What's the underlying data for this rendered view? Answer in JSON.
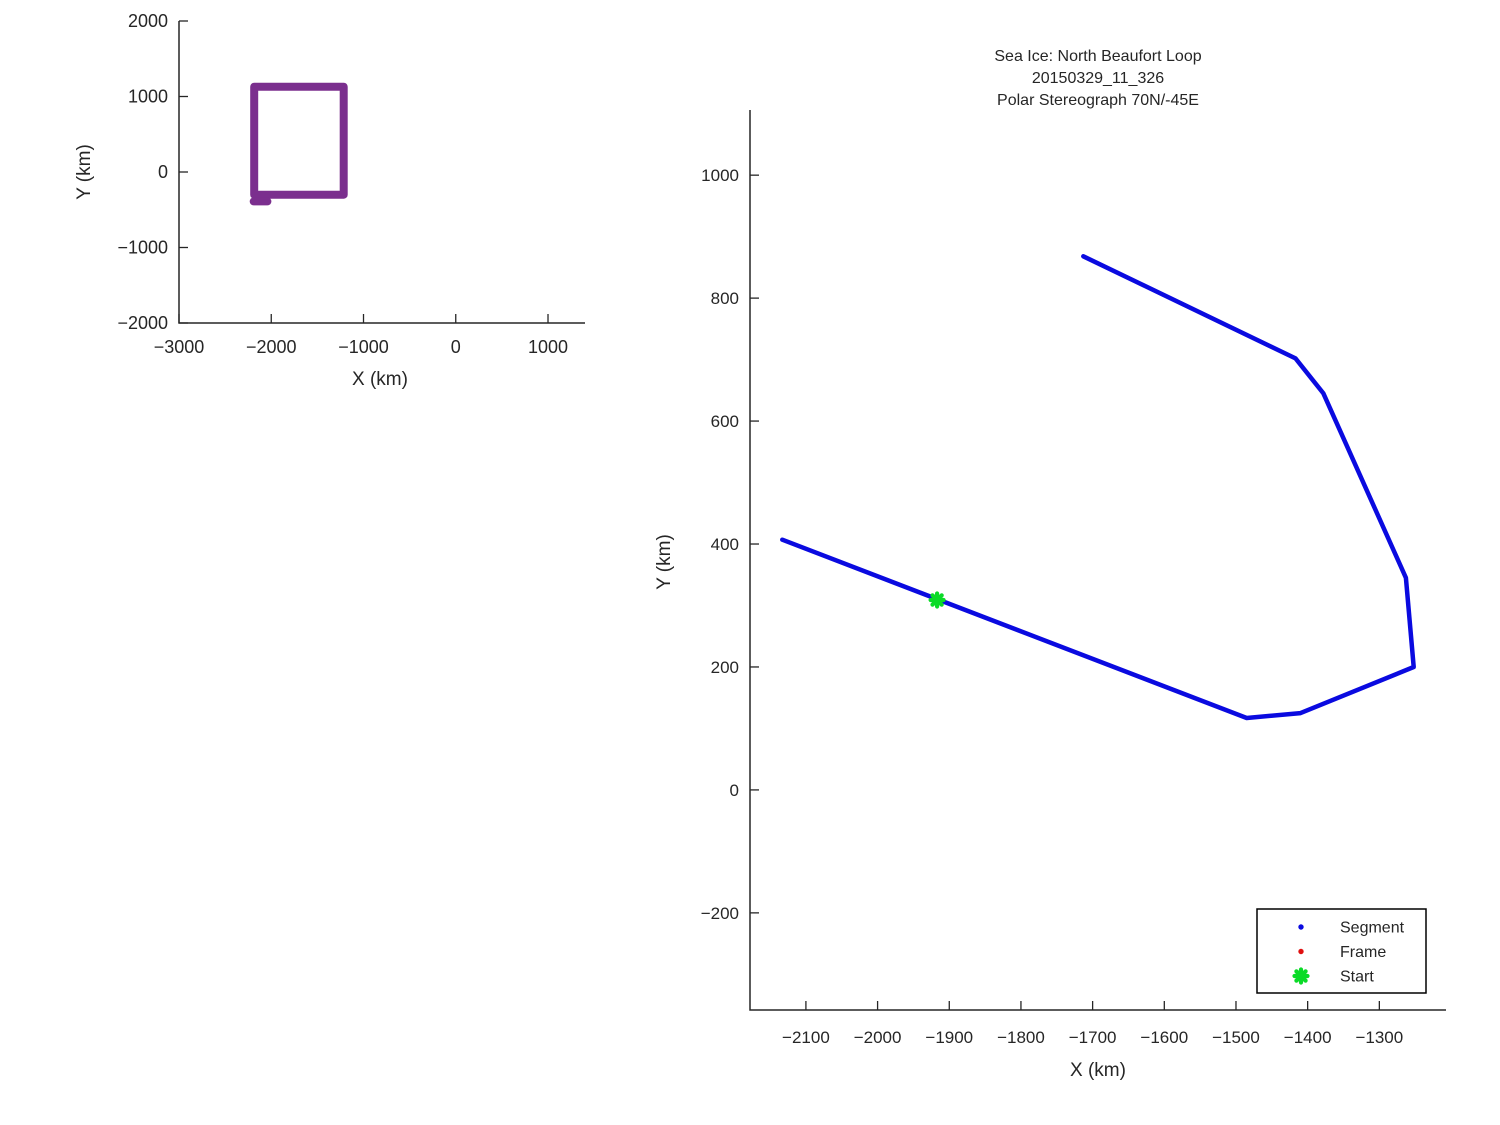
{
  "figure": {
    "background": "#ffffff",
    "axis_color": "#262626",
    "text_color": "#262626"
  },
  "chart_data": [
    {
      "type": "line",
      "id": "overview",
      "title": "",
      "xlabel": "X (km)",
      "ylabel": "Y (km)",
      "xlim": [
        -3000,
        1401
      ],
      "ylim": [
        -2000,
        2000
      ],
      "x_ticks": [
        -3000,
        -2000,
        -1000,
        0,
        1000
      ],
      "y_ticks": [
        -2000,
        -1000,
        0,
        1000,
        2000
      ],
      "grid": false,
      "legend_position": "none",
      "series": [
        {
          "name": "loop-extent-box",
          "color": "#7b2f8e",
          "line_width": 8,
          "points": [
            [
              -2185,
              1130
            ],
            [
              -1215,
              1130
            ],
            [
              -1215,
              -300
            ],
            [
              -2185,
              -300
            ],
            [
              -2185,
              1130
            ]
          ]
        },
        {
          "name": "loop-closure-stub",
          "color": "#7b2f8e",
          "line_width": 8,
          "points": [
            [
              -2190,
              -390
            ],
            [
              -2042,
              -390
            ]
          ]
        }
      ]
    },
    {
      "type": "line",
      "id": "main",
      "title_lines": [
        "Sea Ice: North Beaufort Loop",
        "20150329_11_326",
        "Polar Stereograph 70N/-45E"
      ],
      "xlabel": "X (km)",
      "ylabel": "Y (km)",
      "xlim": [
        -2178,
        -1207
      ],
      "ylim": [
        -358,
        1106
      ],
      "x_ticks": [
        -2100,
        -2000,
        -1900,
        -1800,
        -1700,
        -1600,
        -1500,
        -1400,
        -1300
      ],
      "y_ticks": [
        -200,
        0,
        200,
        400,
        600,
        800,
        1000
      ],
      "grid": false,
      "legend": {
        "position": "bottom-right",
        "entries": [
          {
            "label": "Segment",
            "marker": "dot",
            "color": "#0a0ae0"
          },
          {
            "label": "Frame",
            "marker": "dot",
            "color": "#e01010"
          },
          {
            "label": "Start",
            "marker": "asterisk",
            "color": "#0bdb28"
          }
        ]
      },
      "series": [
        {
          "name": "segment-track",
          "color": "#0a0ae0",
          "line_width": 4.5,
          "points": [
            [
              -1713,
              868
            ],
            [
              -1417,
              702
            ],
            [
              -1378,
              645
            ],
            [
              -1263,
              345
            ],
            [
              -1252,
              200
            ],
            [
              -1410,
              125
            ],
            [
              -1485,
              117
            ],
            [
              -2133,
              407
            ]
          ]
        },
        {
          "name": "start-point",
          "marker": "asterisk",
          "color": "#0bdb28",
          "size": 13,
          "points": [
            [
              -1917,
              309
            ]
          ]
        }
      ]
    }
  ]
}
